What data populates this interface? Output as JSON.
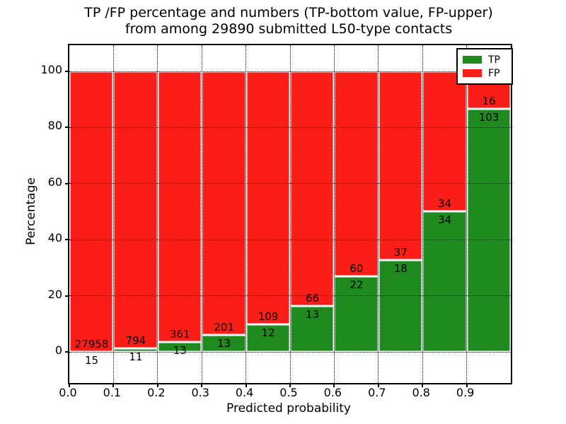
{
  "title": {
    "line1": "TP /FP percentage and numbers (TP-bottom value, FP-upper)",
    "line2": "from among 29890 submitted L50-type contacts"
  },
  "chart_data": {
    "type": "bar",
    "stacked": true,
    "normalized_to_percent": true,
    "title": "TP /FP percentage and numbers (TP-bottom value, FP-upper) from among 29890 submitted L50-type contacts",
    "xlabel": "Predicted probability",
    "ylabel": "Percentage",
    "categories": [
      "0.0",
      "0.1",
      "0.2",
      "0.3",
      "0.4",
      "0.5",
      "0.6",
      "0.7",
      "0.8",
      "0.9"
    ],
    "series": [
      {
        "name": "TP",
        "color": "#1f8b1f",
        "counts": [
          15,
          11,
          13,
          13,
          12,
          13,
          22,
          18,
          34,
          103
        ]
      },
      {
        "name": "FP",
        "color": "#fb1d17",
        "counts": [
          27958,
          794,
          361,
          201,
          109,
          66,
          60,
          37,
          34,
          16
        ]
      }
    ],
    "tp_percent": [
      0.054,
      1.366,
      3.476,
      6.075,
      9.917,
      16.456,
      26.829,
      32.727,
      50.0,
      86.555
    ],
    "total_contacts": 29890,
    "yticks": [
      0,
      20,
      40,
      60,
      80,
      100
    ],
    "yticklabels": [
      "0",
      "20",
      "40",
      "60",
      "80",
      "100"
    ],
    "ylim": [
      -11,
      109.5
    ],
    "xlim": [
      0,
      1
    ],
    "grid": true,
    "grid_style": "dotted",
    "bar_edge_color": "#ffffff",
    "legend": {
      "position": "upper right",
      "entries": [
        {
          "label": "TP",
          "color": "#1f8b1f"
        },
        {
          "label": "FP",
          "color": "#fb1d17"
        }
      ]
    }
  }
}
